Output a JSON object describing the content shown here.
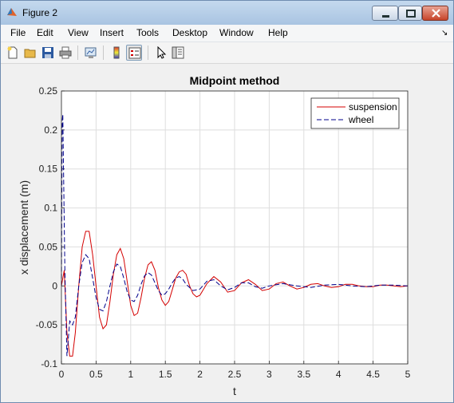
{
  "window": {
    "title": "Figure 2"
  },
  "menu": [
    "File",
    "Edit",
    "View",
    "Insert",
    "Tools",
    "Desktop",
    "Window",
    "Help"
  ],
  "toolbar": [
    "new-figure-icon",
    "open-file-icon",
    "save-icon",
    "print-icon",
    "link-plot-icon",
    "insert-colorbar-icon",
    "insert-legend-icon",
    "edit-plot-pointer-icon",
    "property-editor-icon"
  ],
  "colors": {
    "suspension": "#d40000",
    "wheel": "#00008b",
    "accent": "#7f9db9"
  },
  "chart_data": {
    "type": "line",
    "title": "Midpoint method",
    "xlabel": "t",
    "ylabel": "x displacement (m)",
    "xlim": [
      0,
      5
    ],
    "ylim": [
      -0.1,
      0.25
    ],
    "xticks": [
      "0",
      "0.5",
      "1",
      "1.5",
      "2",
      "2.5",
      "3",
      "3.5",
      "4",
      "4.5",
      "5"
    ],
    "yticks": [
      "0.25",
      "0.2",
      "0.15",
      "0.1",
      "0.05",
      "0",
      "-0.05",
      "-0.1"
    ],
    "grid": true,
    "legend": "top-right",
    "series": [
      {
        "name": "suspension",
        "style": "solid",
        "x": [
          0,
          0.04,
          0.08,
          0.12,
          0.16,
          0.2,
          0.25,
          0.3,
          0.35,
          0.4,
          0.45,
          0.5,
          0.55,
          0.6,
          0.65,
          0.7,
          0.75,
          0.8,
          0.85,
          0.9,
          0.95,
          1.0,
          1.05,
          1.1,
          1.15,
          1.2,
          1.25,
          1.3,
          1.35,
          1.4,
          1.45,
          1.5,
          1.55,
          1.6,
          1.65,
          1.7,
          1.75,
          1.8,
          1.85,
          1.9,
          1.95,
          2.0,
          2.1,
          2.2,
          2.3,
          2.4,
          2.5,
          2.6,
          2.7,
          2.8,
          2.9,
          3.0,
          3.1,
          3.2,
          3.3,
          3.4,
          3.5,
          3.6,
          3.7,
          3.8,
          3.9,
          4.0,
          4.1,
          4.2,
          4.3,
          4.4,
          4.5,
          4.6,
          4.7,
          4.8,
          4.9,
          5.0
        ],
        "y": [
          0,
          0.02,
          -0.06,
          -0.09,
          -0.09,
          -0.06,
          0.0,
          0.05,
          0.07,
          0.07,
          0.04,
          0.0,
          -0.04,
          -0.055,
          -0.05,
          -0.02,
          0.015,
          0.04,
          0.048,
          0.035,
          0.005,
          -0.025,
          -0.038,
          -0.035,
          -0.015,
          0.01,
          0.027,
          0.031,
          0.02,
          -0.002,
          -0.018,
          -0.025,
          -0.02,
          -0.005,
          0.01,
          0.018,
          0.02,
          0.015,
          0.0,
          -0.01,
          -0.014,
          -0.012,
          0.003,
          0.012,
          0.005,
          -0.008,
          -0.006,
          0.004,
          0.008,
          0.002,
          -0.006,
          -0.004,
          0.003,
          0.005,
          0.0,
          -0.004,
          -0.002,
          0.002,
          0.003,
          0.0,
          -0.002,
          -0.001,
          0.002,
          0.002,
          0.0,
          -0.001,
          -0.001,
          0.001,
          0.001,
          0.0,
          -0.001,
          0.0
        ]
      },
      {
        "name": "wheel",
        "style": "dashed",
        "x": [
          0,
          0.01,
          0.02,
          0.03,
          0.05,
          0.08,
          0.12,
          0.16,
          0.2,
          0.25,
          0.3,
          0.35,
          0.4,
          0.45,
          0.5,
          0.55,
          0.6,
          0.65,
          0.7,
          0.75,
          0.8,
          0.85,
          0.9,
          0.95,
          1.0,
          1.05,
          1.1,
          1.15,
          1.2,
          1.25,
          1.3,
          1.35,
          1.4,
          1.45,
          1.5,
          1.55,
          1.6,
          1.65,
          1.7,
          1.75,
          1.8,
          1.9,
          2.0,
          2.1,
          2.2,
          2.3,
          2.4,
          2.5,
          2.6,
          2.7,
          2.8,
          2.9,
          3.0,
          3.2,
          3.4,
          3.6,
          3.8,
          4.0,
          4.2,
          4.4,
          4.6,
          4.8,
          5.0
        ],
        "y": [
          0,
          0.21,
          0.22,
          0.15,
          0.02,
          -0.09,
          -0.045,
          -0.05,
          -0.04,
          0.0,
          0.03,
          0.04,
          0.035,
          0.01,
          -0.015,
          -0.03,
          -0.032,
          -0.02,
          0.0,
          0.018,
          0.028,
          0.025,
          0.01,
          -0.008,
          -0.018,
          -0.02,
          -0.012,
          0.002,
          0.013,
          0.017,
          0.014,
          0.004,
          -0.006,
          -0.012,
          -0.01,
          -0.004,
          0.004,
          0.01,
          0.012,
          0.009,
          0.002,
          -0.006,
          -0.004,
          0.006,
          0.008,
          0.0,
          -0.005,
          -0.002,
          0.004,
          0.004,
          -0.001,
          -0.003,
          0.0,
          0.003,
          0.0,
          -0.002,
          0.001,
          0.002,
          0.0,
          -0.001,
          0.001,
          0.001,
          0.0
        ]
      }
    ]
  }
}
